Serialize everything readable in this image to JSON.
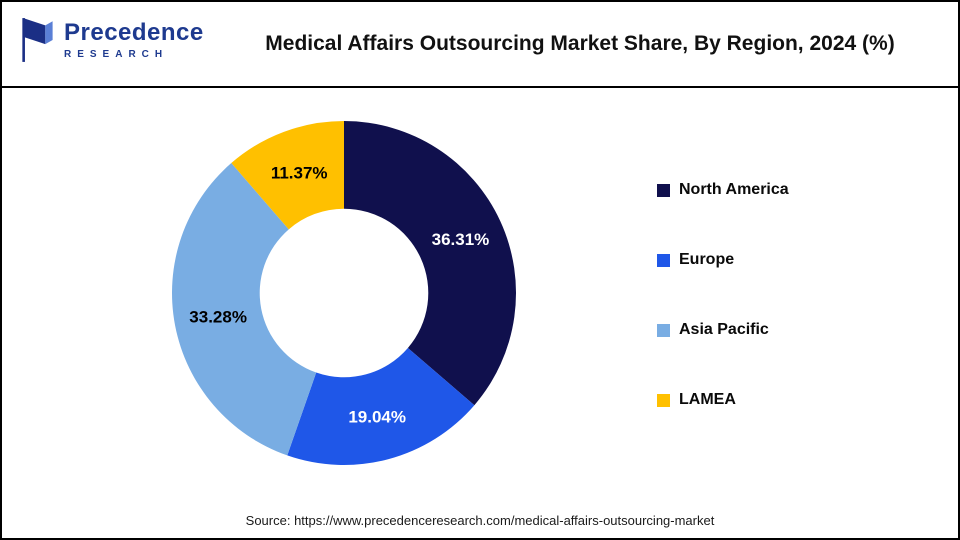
{
  "header": {
    "logo": {
      "line1": "Precedence",
      "line2": "RESEARCH"
    },
    "title": "Medical Affairs Outsourcing Market Share, By Region, 2024 (%)"
  },
  "chart_data": {
    "type": "pie",
    "subtype": "donut",
    "title": "Medical Affairs Outsourcing Market Share, By Region, 2024 (%)",
    "categories": [
      "North America",
      "Europe",
      "Asia Pacific",
      "LAMEA"
    ],
    "values": [
      36.31,
      19.04,
      33.28,
      11.37
    ],
    "labels": [
      "36.31%",
      "19.04%",
      "33.28%",
      "11.37%"
    ],
    "unit": "%",
    "colors": [
      "#10104d",
      "#1f57e8",
      "#79ade3",
      "#ffc000"
    ],
    "label_colors": [
      "#ffffff",
      "#ffffff",
      "#000000",
      "#000000"
    ],
    "start_angle": 0,
    "direction": "clockwise",
    "inner_radius_ratio": 0.49,
    "legend_position": "right"
  },
  "legend": {
    "items": [
      {
        "label": "North America",
        "color": "#10104d"
      },
      {
        "label": "Europe",
        "color": "#1f57e8"
      },
      {
        "label": "Asia Pacific",
        "color": "#79ade3"
      },
      {
        "label": "LAMEA",
        "color": "#ffc000"
      }
    ]
  },
  "footer": {
    "source": "Source: https://www.precedenceresearch.com/medical-affairs-outsourcing-market"
  }
}
